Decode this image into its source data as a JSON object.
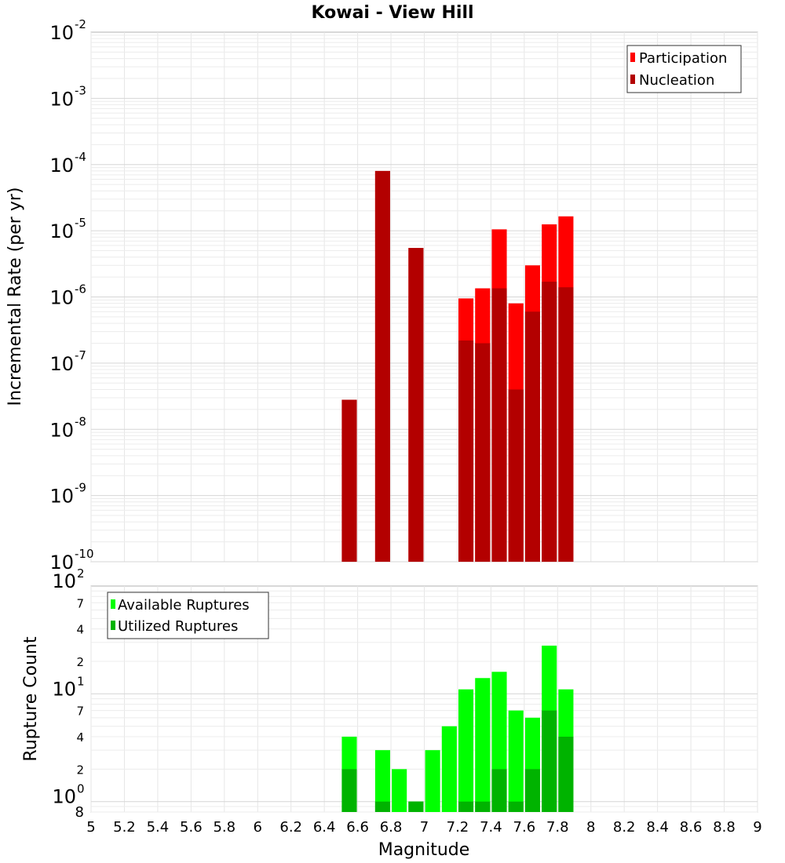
{
  "chart_data": [
    {
      "type": "bar",
      "title": "Kowai - View Hill",
      "xlabel": "",
      "ylabel": "Incremental Rate (per yr)",
      "xlim": [
        5,
        9
      ],
      "ylim": [
        1e-10,
        0.01
      ],
      "yscale": "log",
      "grid": true,
      "legend_position": "top-right",
      "y_ticks": [
        {
          "base": "10",
          "exp": "-10"
        },
        {
          "base": "10",
          "exp": "-9"
        },
        {
          "base": "10",
          "exp": "-8"
        },
        {
          "base": "10",
          "exp": "-7"
        },
        {
          "base": "10",
          "exp": "-6"
        },
        {
          "base": "10",
          "exp": "-5"
        },
        {
          "base": "10",
          "exp": "-4"
        },
        {
          "base": "10",
          "exp": "-3"
        },
        {
          "base": "10",
          "exp": "-2"
        }
      ],
      "series": [
        {
          "name": "Participation",
          "color": "#ff0000",
          "x": [
            6.55,
            6.75,
            6.95,
            7.25,
            7.35,
            7.45,
            7.55,
            7.65,
            7.75,
            7.85
          ],
          "values": [
            2.8e-08,
            8e-05,
            5.5e-06,
            9.5e-07,
            1.35e-06,
            1.05e-05,
            8e-07,
            3e-06,
            1.25e-05,
            1.65e-05
          ]
        },
        {
          "name": "Nucleation",
          "color": "#b30000",
          "x": [
            6.55,
            6.75,
            6.95,
            7.25,
            7.35,
            7.45,
            7.55,
            7.65,
            7.75,
            7.85
          ],
          "values": [
            2.8e-08,
            8e-05,
            5.5e-06,
            2.2e-07,
            2e-07,
            1.35e-06,
            4e-08,
            6e-07,
            1.7e-06,
            1.4e-06
          ]
        }
      ]
    },
    {
      "type": "bar",
      "title": "",
      "xlabel": "Magnitude",
      "ylabel": "Rupture Count",
      "xlim": [
        5,
        9
      ],
      "ylim": [
        0.8,
        100
      ],
      "yscale": "log",
      "grid": true,
      "legend_position": "top-left",
      "x_tick_labels": [
        "5",
        "5.2",
        "5.4",
        "5.6",
        "5.8",
        "6",
        "6.2",
        "6.4",
        "6.6",
        "6.8",
        "7",
        "7.2",
        "7.4",
        "7.6",
        "7.8",
        "8",
        "8.2",
        "8.4",
        "8.6",
        "8.8",
        "9"
      ],
      "y_major_ticks": [
        {
          "base": "10",
          "exp": "0"
        },
        {
          "base": "10",
          "exp": "1"
        },
        {
          "base": "10",
          "exp": "2"
        }
      ],
      "y_minor_ticks": [
        {
          "label": "8",
          "value": 0.8
        },
        {
          "label": "2",
          "value": 2
        },
        {
          "label": "4",
          "value": 4
        },
        {
          "label": "7",
          "value": 7
        },
        {
          "label": "2",
          "value": 20
        },
        {
          "label": "4",
          "value": 40
        },
        {
          "label": "7",
          "value": 70
        }
      ],
      "series": [
        {
          "name": "Available Ruptures",
          "color": "#00ff00",
          "x": [
            6.55,
            6.75,
            6.85,
            6.95,
            7.05,
            7.15,
            7.25,
            7.35,
            7.45,
            7.55,
            7.65,
            7.75,
            7.85
          ],
          "values": [
            4,
            3,
            2,
            1,
            3,
            5,
            11,
            14,
            16,
            7,
            6,
            28,
            11
          ]
        },
        {
          "name": "Utilized Ruptures",
          "color": "#00b300",
          "x": [
            6.55,
            6.75,
            6.85,
            6.95,
            7.05,
            7.15,
            7.25,
            7.35,
            7.45,
            7.55,
            7.65,
            7.75,
            7.85
          ],
          "values": [
            2,
            1,
            0,
            1,
            0,
            0,
            1,
            1,
            2,
            1,
            2,
            7,
            4
          ]
        }
      ]
    }
  ]
}
